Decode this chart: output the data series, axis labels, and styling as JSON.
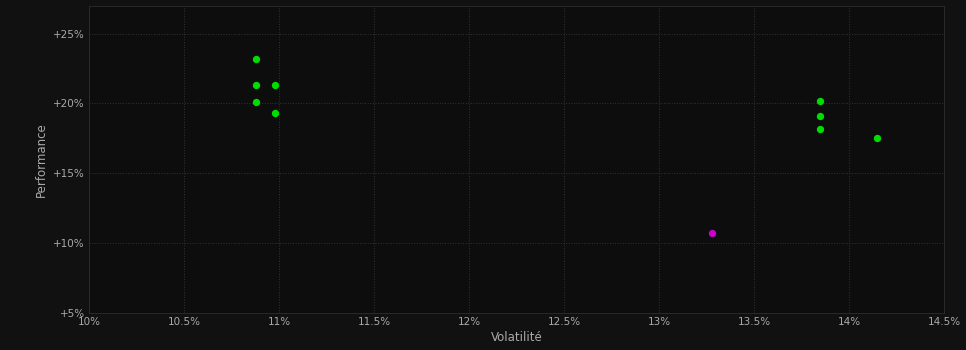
{
  "background_color": "#111111",
  "plot_bg_color": "#0d0d0d",
  "grid_color": "#333333",
  "text_color": "#aaaaaa",
  "xlabel": "Volatilité",
  "ylabel": "Performance",
  "xlim": [
    0.1,
    0.145
  ],
  "ylim": [
    0.05,
    0.27
  ],
  "xtick_values": [
    0.1,
    0.105,
    0.11,
    0.115,
    0.12,
    0.125,
    0.13,
    0.135,
    0.14,
    0.145
  ],
  "ytick_values": [
    0.05,
    0.1,
    0.15,
    0.2,
    0.25
  ],
  "ytick_labels": [
    "+5%",
    "+10%",
    "+15%",
    "+20%",
    "+25%"
  ],
  "xtick_labels": [
    "10%",
    "10.5%",
    "11%",
    "11.5%",
    "12%",
    "12.5%",
    "13%",
    "13.5%",
    "14%",
    "14.5%"
  ],
  "green_points": [
    [
      0.1088,
      0.232
    ],
    [
      0.1088,
      0.213
    ],
    [
      0.1098,
      0.213
    ],
    [
      0.1088,
      0.201
    ],
    [
      0.1098,
      0.193
    ],
    [
      0.1385,
      0.202
    ],
    [
      0.1385,
      0.191
    ],
    [
      0.1385,
      0.182
    ],
    [
      0.1415,
      0.175
    ]
  ],
  "magenta_points": [
    [
      0.1328,
      0.107
    ]
  ],
  "point_size": 28,
  "green_color": "#00dd00",
  "magenta_color": "#cc00cc"
}
